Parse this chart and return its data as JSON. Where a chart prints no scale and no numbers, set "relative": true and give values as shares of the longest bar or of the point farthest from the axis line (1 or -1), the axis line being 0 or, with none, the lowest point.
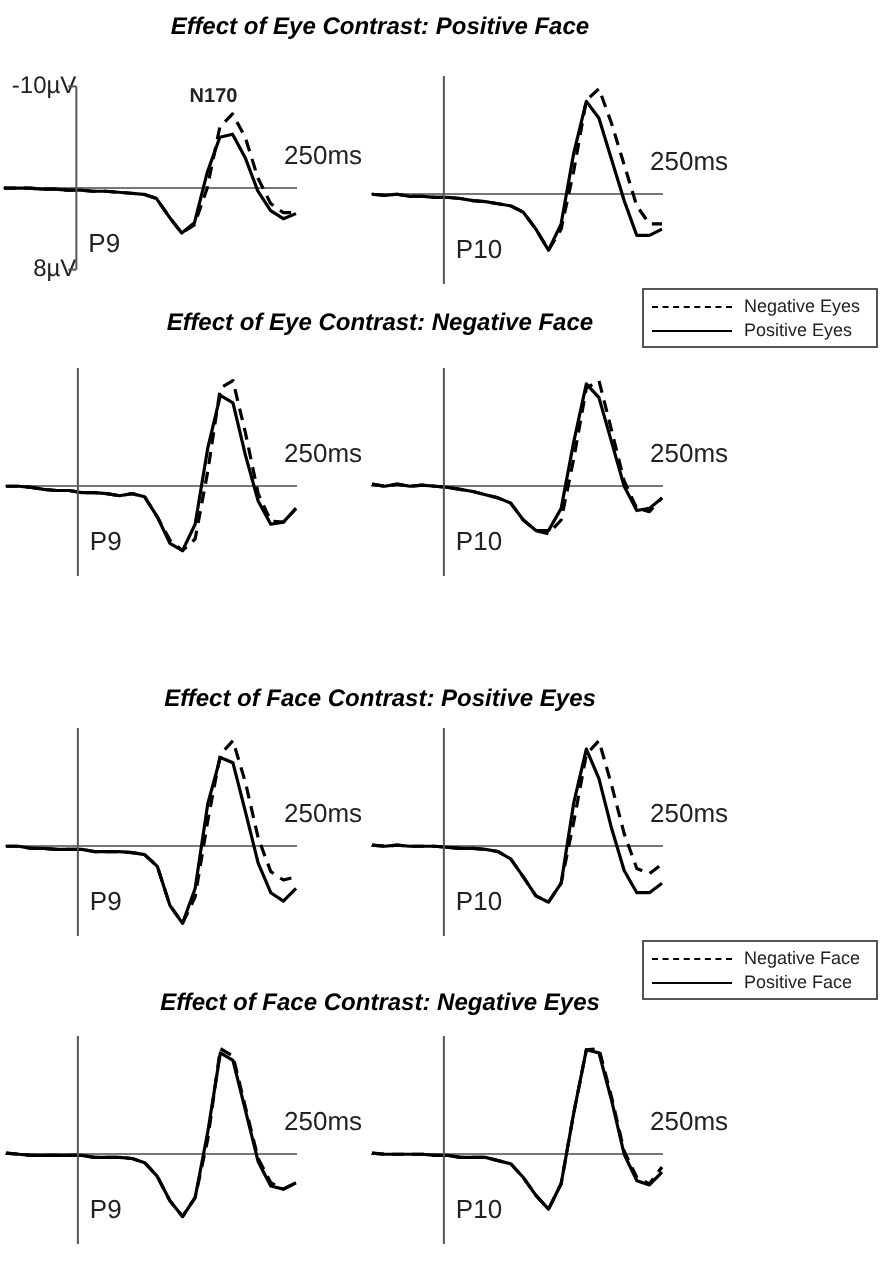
{
  "chart_data": [
    {
      "type": "line",
      "title": "Effect of Eye Contrast: Positive Face",
      "categories": [
        null,
        null,
        null,
        null,
        null,
        null,
        null,
        null,
        null,
        null,
        null,
        null,
        null,
        null,
        null,
        null,
        null,
        null,
        null,
        null,
        null,
        null,
        null,
        null
      ],
      "ylim": [
        8,
        -10
      ],
      "yticks": [
        {
          "value": -10,
          "label": "-10µV"
        },
        {
          "value": 8,
          "label": "8µV"
        }
      ],
      "tick_labels": "y",
      "annotations": [
        "250ms",
        "P9",
        "N170"
      ],
      "series": [
        {
          "color": "#000000",
          "line_style": "dashed",
          "values": [
            0,
            0,
            0,
            0.1,
            0.1,
            0.2,
            0.2,
            0.3,
            0.3,
            0.4,
            0.5,
            0.6,
            1.0,
            2.8,
            4.4,
            3.6,
            0,
            -6.0,
            -7.3,
            -5.0,
            -1.0,
            1.5,
            2.4,
            2.4
          ]
        },
        {
          "color": "#000000",
          "line_style": "solid",
          "values": [
            0,
            0,
            0,
            0.1,
            0.1,
            0.2,
            0.2,
            0.3,
            0.3,
            0.4,
            0.5,
            0.6,
            1.0,
            2.8,
            4.4,
            3.4,
            -1.5,
            -5.0,
            -5.3,
            -3.0,
            0.3,
            2.2,
            3.0,
            2.5
          ]
        }
      ]
    },
    {
      "type": "line",
      "relative": true,
      "categories": [
        null,
        null,
        null,
        null,
        null,
        null,
        null,
        null,
        null,
        null,
        null,
        null,
        null,
        null,
        null,
        null,
        null,
        null,
        null,
        null,
        null,
        null,
        null,
        null
      ],
      "annotations": [
        "250ms",
        "P10"
      ],
      "legend": "bottom right",
      "series": [
        {
          "name": "Negative Eyes",
          "color": "#000000",
          "line_style": "dashed",
          "values": [
            0,
            -0.01,
            0,
            -0.02,
            -0.02,
            -0.03,
            -0.03,
            -0.04,
            -0.06,
            -0.07,
            -0.09,
            -0.11,
            -0.17,
            -0.33,
            -0.53,
            -0.33,
            0.22,
            0.89,
            1,
            0.67,
            0.28,
            -0.11,
            -0.28,
            -0.28
          ]
        },
        {
          "name": "Positive Eyes",
          "color": "#000000",
          "line_style": "solid",
          "values": [
            0,
            -0.01,
            0,
            -0.02,
            -0.02,
            -0.03,
            -0.03,
            -0.04,
            -0.06,
            -0.07,
            -0.09,
            -0.11,
            -0.17,
            -0.33,
            -0.53,
            -0.28,
            0.39,
            0.88,
            0.72,
            0.33,
            -0.06,
            -0.39,
            -0.39,
            -0.33
          ]
        }
      ]
    },
    {
      "type": "line",
      "relative": true,
      "title": "Effect of Eye Contrast: Negative Face",
      "categories": [
        null,
        null,
        null,
        null,
        null,
        null,
        null,
        null,
        null,
        null,
        null,
        null,
        null,
        null,
        null,
        null,
        null,
        null,
        null,
        null,
        null,
        null,
        null,
        null
      ],
      "annotations": [
        "250ms",
        "P9"
      ],
      "series": [
        {
          "color": "#000000",
          "line_style": "dashed",
          "values": [
            0,
            0,
            -0.01,
            -0.03,
            -0.04,
            -0.04,
            -0.06,
            -0.06,
            -0.07,
            -0.09,
            -0.07,
            -0.1,
            -0.29,
            -0.51,
            -0.61,
            -0.5,
            0.14,
            0.93,
            1,
            0.5,
            -0.07,
            -0.33,
            -0.34,
            -0.21
          ]
        },
        {
          "color": "#000000",
          "line_style": "solid",
          "values": [
            0,
            0,
            -0.01,
            -0.03,
            -0.04,
            -0.04,
            -0.06,
            -0.06,
            -0.07,
            -0.09,
            -0.07,
            -0.1,
            -0.29,
            -0.54,
            -0.61,
            -0.36,
            0.36,
            0.86,
            0.79,
            0.29,
            -0.14,
            -0.36,
            -0.34,
            -0.21
          ]
        }
      ]
    },
    {
      "type": "line",
      "relative": true,
      "categories": [
        null,
        null,
        null,
        null,
        null,
        null,
        null,
        null,
        null,
        null,
        null,
        null,
        null,
        null,
        null,
        null,
        null,
        null,
        null,
        null,
        null,
        null,
        null,
        null
      ],
      "annotations": [
        "250ms",
        "P10"
      ],
      "series": [
        {
          "color": "#000000",
          "line_style": "dashed",
          "values": [
            0.02,
            0,
            0.02,
            0,
            0.01,
            0,
            -0.01,
            -0.03,
            -0.05,
            -0.08,
            -0.11,
            -0.16,
            -0.32,
            -0.42,
            -0.45,
            -0.32,
            0.26,
            0.93,
            1,
            0.53,
            0.05,
            -0.21,
            -0.24,
            -0.11
          ]
        },
        {
          "color": "#000000",
          "line_style": "solid",
          "values": [
            0.02,
            0,
            0.02,
            0,
            0.01,
            0,
            -0.01,
            -0.03,
            -0.05,
            -0.08,
            -0.11,
            -0.16,
            -0.32,
            -0.42,
            -0.42,
            -0.21,
            0.42,
            0.97,
            0.84,
            0.42,
            0,
            -0.23,
            -0.21,
            -0.11
          ]
        }
      ]
    },
    {
      "type": "line",
      "relative": true,
      "title": "Effect of Face Contrast: Positive Eyes",
      "categories": [
        null,
        null,
        null,
        null,
        null,
        null,
        null,
        null,
        null,
        null,
        null,
        null,
        null,
        null,
        null,
        null,
        null,
        null,
        null,
        null,
        null,
        null,
        null,
        null
      ],
      "annotations": [
        "250ms",
        "P9"
      ],
      "series": [
        {
          "color": "#000000",
          "line_style": "dashed",
          "values": [
            0,
            0,
            -0.02,
            -0.02,
            -0.03,
            -0.03,
            -0.03,
            -0.05,
            -0.05,
            -0.05,
            -0.06,
            -0.08,
            -0.19,
            -0.56,
            -0.73,
            -0.48,
            0.24,
            0.87,
            1,
            0.6,
            0.08,
            -0.24,
            -0.32,
            -0.29
          ]
        },
        {
          "color": "#000000",
          "line_style": "solid",
          "values": [
            0,
            0,
            -0.02,
            -0.02,
            -0.03,
            -0.03,
            -0.03,
            -0.05,
            -0.05,
            -0.05,
            -0.06,
            -0.08,
            -0.19,
            -0.56,
            -0.73,
            -0.4,
            0.4,
            0.84,
            0.79,
            0.32,
            -0.16,
            -0.44,
            -0.52,
            -0.4
          ]
        }
      ]
    },
    {
      "type": "line",
      "relative": true,
      "categories": [
        null,
        null,
        null,
        null,
        null,
        null,
        null,
        null,
        null,
        null,
        null,
        null,
        null,
        null,
        null,
        null,
        null,
        null,
        null,
        null,
        null,
        null,
        null,
        null
      ],
      "annotations": [
        "250ms",
        "P10"
      ],
      "legend": "bottom right",
      "series": [
        {
          "name": "Negative Face",
          "color": "#000000",
          "line_style": "dashed",
          "values": [
            0.01,
            0,
            0.01,
            0,
            0,
            0,
            -0.01,
            -0.02,
            -0.02,
            -0.03,
            -0.05,
            -0.12,
            -0.29,
            -0.47,
            -0.53,
            -0.35,
            0.23,
            0.87,
            1,
            0.58,
            0.12,
            -0.21,
            -0.26,
            -0.17
          ]
        },
        {
          "name": "Positive Face",
          "color": "#000000",
          "line_style": "solid",
          "values": [
            0.01,
            0,
            0.01,
            0,
            0,
            0,
            -0.01,
            -0.02,
            -0.02,
            -0.03,
            -0.05,
            -0.12,
            -0.29,
            -0.47,
            -0.53,
            -0.35,
            0.41,
            0.92,
            0.64,
            0.17,
            -0.23,
            -0.44,
            -0.44,
            -0.35
          ]
        }
      ]
    },
    {
      "type": "line",
      "relative": true,
      "title": "Effect of Face Contrast: Negative Eyes",
      "categories": [
        null,
        null,
        null,
        null,
        null,
        null,
        null,
        null,
        null,
        null,
        null,
        null,
        null,
        null,
        null,
        null,
        null,
        null,
        null,
        null,
        null,
        null,
        null,
        null
      ],
      "annotations": [
        "250ms",
        "P9"
      ],
      "series": [
        {
          "color": "#000000",
          "line_style": "dashed",
          "values": [
            0.01,
            0,
            -0.01,
            -0.01,
            -0.01,
            -0.01,
            -0.01,
            -0.03,
            -0.03,
            -0.03,
            -0.04,
            -0.08,
            -0.21,
            -0.44,
            -0.59,
            -0.41,
            0.14,
            1,
            0.93,
            0.44,
            -0.04,
            -0.27,
            -0.33,
            -0.27
          ]
        },
        {
          "color": "#000000",
          "line_style": "solid",
          "values": [
            0.01,
            0,
            -0.01,
            -0.01,
            -0.01,
            -0.01,
            -0.01,
            -0.03,
            -0.03,
            -0.03,
            -0.04,
            -0.08,
            -0.21,
            -0.44,
            -0.59,
            -0.41,
            0.21,
            0.96,
            0.89,
            0.41,
            -0.07,
            -0.3,
            -0.33,
            -0.27
          ]
        }
      ]
    },
    {
      "type": "line",
      "relative": true,
      "categories": [
        null,
        null,
        null,
        null,
        null,
        null,
        null,
        null,
        null,
        null,
        null,
        null,
        null,
        null,
        null,
        null,
        null,
        null,
        null,
        null,
        null,
        null,
        null,
        null
      ],
      "annotations": [
        "250ms",
        "P10"
      ],
      "series": [
        {
          "color": "#000000",
          "line_style": "dashed",
          "values": [
            0.01,
            0,
            0,
            0,
            0,
            -0.01,
            -0.01,
            -0.03,
            -0.03,
            -0.03,
            -0.06,
            -0.09,
            -0.22,
            -0.39,
            -0.52,
            -0.28,
            0.39,
            0.99,
            1,
            0.54,
            0.03,
            -0.22,
            -0.28,
            -0.12
          ]
        },
        {
          "color": "#000000",
          "line_style": "solid",
          "values": [
            0.01,
            0,
            0,
            0,
            0,
            -0.01,
            -0.01,
            -0.03,
            -0.03,
            -0.03,
            -0.06,
            -0.09,
            -0.22,
            -0.39,
            -0.52,
            -0.28,
            0.39,
            0.99,
            0.96,
            0.51,
            0,
            -0.25,
            -0.29,
            -0.17
          ]
        }
      ]
    }
  ]
}
